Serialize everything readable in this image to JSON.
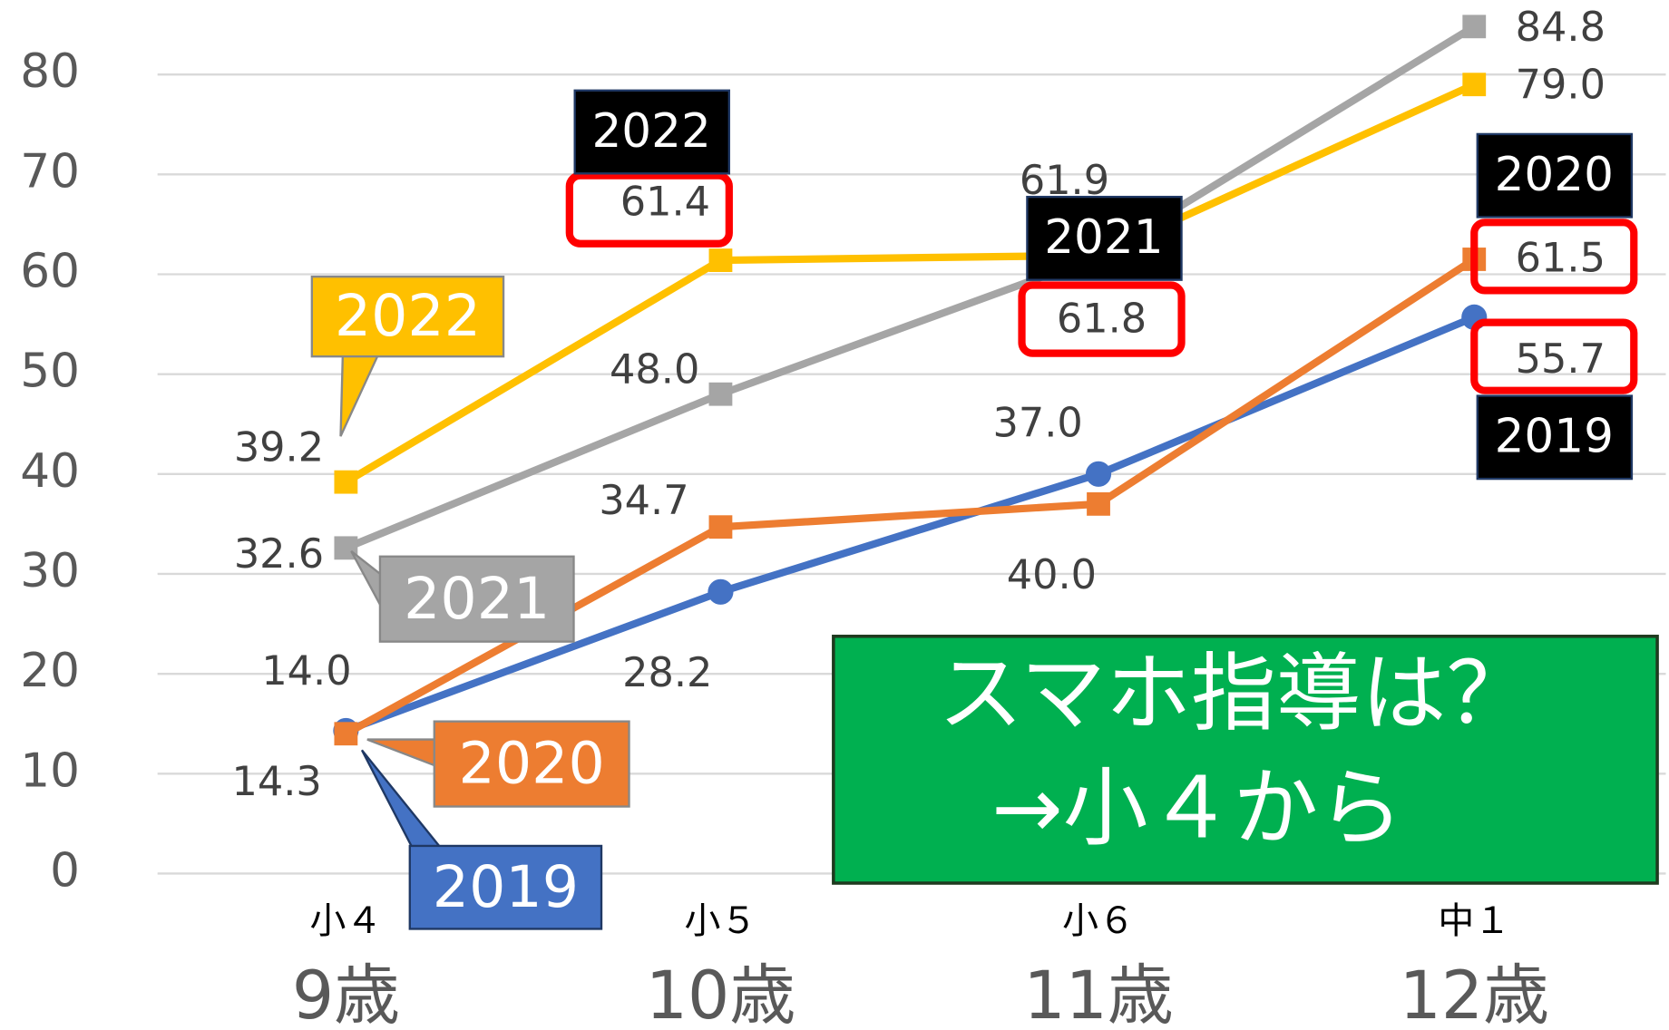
{
  "chart_data": {
    "type": "line",
    "categories": [
      "9歳",
      "10歳",
      "11歳",
      "12歳"
    ],
    "grades": [
      "小４",
      "小５",
      "小６",
      "中１"
    ],
    "series": [
      {
        "name": "2019",
        "color": "#4472c4",
        "marker": "circle",
        "values": [
          14.3,
          28.2,
          40.0,
          55.7
        ],
        "value_labels": [
          "14.3",
          "28.2",
          "40.0",
          "55.7"
        ]
      },
      {
        "name": "2020",
        "color": "#ed7d31",
        "marker": "square",
        "values": [
          14.0,
          34.7,
          37.0,
          61.5
        ],
        "value_labels": [
          "14.0",
          "34.7",
          "37.0",
          "61.5"
        ]
      },
      {
        "name": "2021",
        "color": "#a5a5a5",
        "marker": "square",
        "values": [
          32.6,
          48.0,
          61.8,
          84.8
        ],
        "value_labels": [
          "32.6",
          "48.0",
          "61.8",
          "84.8"
        ]
      },
      {
        "name": "2022",
        "color": "#ffc000",
        "marker": "square",
        "values": [
          39.2,
          61.4,
          61.9,
          79.0
        ],
        "value_labels": [
          "39.2",
          "61.4",
          "61.9",
          "79.0"
        ]
      }
    ],
    "ylim": [
      0,
      80
    ],
    "yticks": [
      0,
      10,
      20,
      30,
      40,
      50,
      60,
      70,
      80
    ],
    "grid": true,
    "annotations": [
      "スマホ指導は？",
      "→小４から"
    ]
  }
}
